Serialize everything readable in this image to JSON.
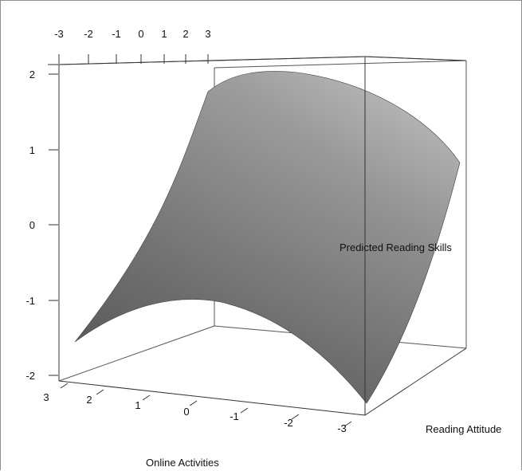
{
  "chart_data": {
    "type": "surface3d",
    "title": "",
    "axes": {
      "x": {
        "label": "Reading Attitude",
        "ticks": []
      },
      "y": {
        "label": "Online Activities",
        "ticks": [
          "3",
          "2",
          "1",
          "0",
          "-1",
          "-2",
          "-3"
        ]
      },
      "z": {
        "label": "Predicted Reading Skills",
        "ticks": [
          "2",
          "1",
          "0",
          "-1",
          "-2"
        ]
      },
      "top": {
        "label": "",
        "ticks": [
          "-3",
          "-2",
          "-1",
          "0",
          "1",
          "2",
          "3"
        ]
      }
    },
    "surface": {
      "color": "#8a8a8a",
      "corner_values": {
        "front_left": -1.5,
        "front_right": -2.2,
        "back_left": 1.8,
        "back_right": 1.0
      },
      "shape": "curved quadratic surface"
    },
    "box_color": "#666666",
    "background": "#ffffff"
  }
}
